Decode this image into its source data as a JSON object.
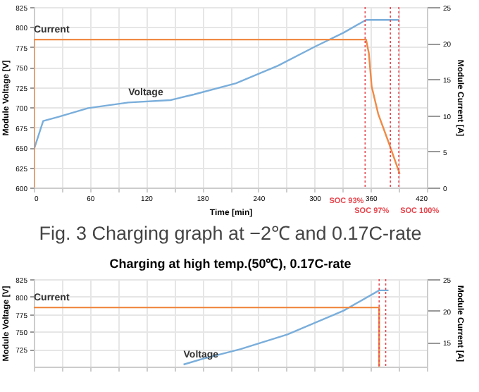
{
  "chart_data": [
    {
      "type": "line",
      "annotations": [
        "Fig. 3 Charging graph at −2℃ and 0.17C-rate"
      ],
      "xlabel": "Time [min]",
      "ylabel": "Module Voltage [V]",
      "y2label": "Module Current [A]",
      "xlim": [
        0,
        420
      ],
      "xticks": [
        0,
        {
          "value": 30,
          "label": null
        },
        60,
        {
          "value": 90,
          "label": null
        },
        120,
        {
          "value": 150,
          "label": null
        },
        180,
        {
          "value": 210,
          "label": null
        },
        240,
        {
          "value": 270,
          "label": null
        },
        300,
        {
          "value": 330,
          "label": null
        },
        360,
        {
          "value": 390,
          "label": null
        },
        420
      ],
      "ylim": [
        600,
        825
      ],
      "yticks": [
        600,
        625,
        650,
        675,
        700,
        725,
        750,
        775,
        800,
        825
      ],
      "y2lim": [
        0,
        25
      ],
      "y2ticks": [
        0,
        5,
        10,
        15,
        20,
        25
      ],
      "series": [
        {
          "name": "Voltage",
          "color": "#7aaedb",
          "axis": "y",
          "x": [
            0,
            10,
            26,
            58,
            101,
            146,
            171,
            216,
            261,
            301,
            331,
            355,
            390
          ],
          "values": [
            647,
            683,
            688,
            699,
            706,
            709,
            716,
            730,
            752,
            776,
            793,
            809,
            809
          ]
        },
        {
          "name": "Current",
          "color": "#f08a45",
          "axis": "y2",
          "x": [
            0,
            0,
            355,
            358,
            361,
            368,
            379,
            391
          ],
          "values": [
            0,
            20.5,
            20.5,
            18.6,
            14,
            10.2,
            6.3,
            1.9
          ]
        }
      ],
      "ref_lines": [
        {
          "axis": "x",
          "value": 354,
          "label": "SOC 93%",
          "color": "#e8474f",
          "line_style": "dotted"
        },
        {
          "axis": "x",
          "value": 381,
          "label": "SOC 97%",
          "color": "#e8474f",
          "line_style": "dotted"
        },
        {
          "axis": "x",
          "value": 390,
          "label": "SOC 100%",
          "color": "#e8474f",
          "line_style": "dotted"
        }
      ],
      "grid": true,
      "line_style": "solid"
    },
    {
      "type": "line",
      "title": "Charging at high temp.(50℃), 0.17C-rate",
      "ylabel": "Module Voltage [V]",
      "y2label": "Module Current [A]",
      "xlim": [
        0,
        420
      ],
      "xticks": [
        {
          "value": 0,
          "label": null
        },
        {
          "value": 30,
          "label": null
        },
        {
          "value": 60,
          "label": null
        },
        {
          "value": 90,
          "label": null
        },
        {
          "value": 120,
          "label": null
        },
        {
          "value": 150,
          "label": null
        },
        {
          "value": 180,
          "label": null
        },
        {
          "value": 210,
          "label": null
        },
        {
          "value": 240,
          "label": null
        },
        {
          "value": 270,
          "label": null
        },
        {
          "value": 300,
          "label": null
        },
        {
          "value": 330,
          "label": null
        },
        {
          "value": 360,
          "label": null
        },
        {
          "value": 390,
          "label": null
        },
        {
          "value": 420,
          "label": null
        }
      ],
      "ylim": [
        700,
        825
      ],
      "yticks": [
        725,
        750,
        775,
        800,
        825
      ],
      "y2lim": [
        11.1,
        25
      ],
      "y2ticks": [
        15,
        20,
        25
      ],
      "tick_labels": "y",
      "series": [
        {
          "name": "Voltage",
          "color": "#7aaedb",
          "axis": "y",
          "x": [
            160,
            180,
            221,
            271,
            331,
            369,
            379
          ],
          "values": [
            703,
            711,
            725,
            746,
            780,
            809,
            809
          ]
        },
        {
          "name": "Current",
          "color": "#f08a45",
          "axis": "y2",
          "x": [
            0,
            369,
            369
          ],
          "values": [
            20.5,
            20.5,
            11.1
          ]
        }
      ],
      "ref_lines": [
        {
          "axis": "x",
          "value": 369,
          "color": "#e8474f",
          "line_style": "dotted"
        },
        {
          "axis": "x",
          "value": 376,
          "color": "#e8474f",
          "line_style": "dotted"
        }
      ],
      "grid": true,
      "line_style": "solid"
    }
  ]
}
